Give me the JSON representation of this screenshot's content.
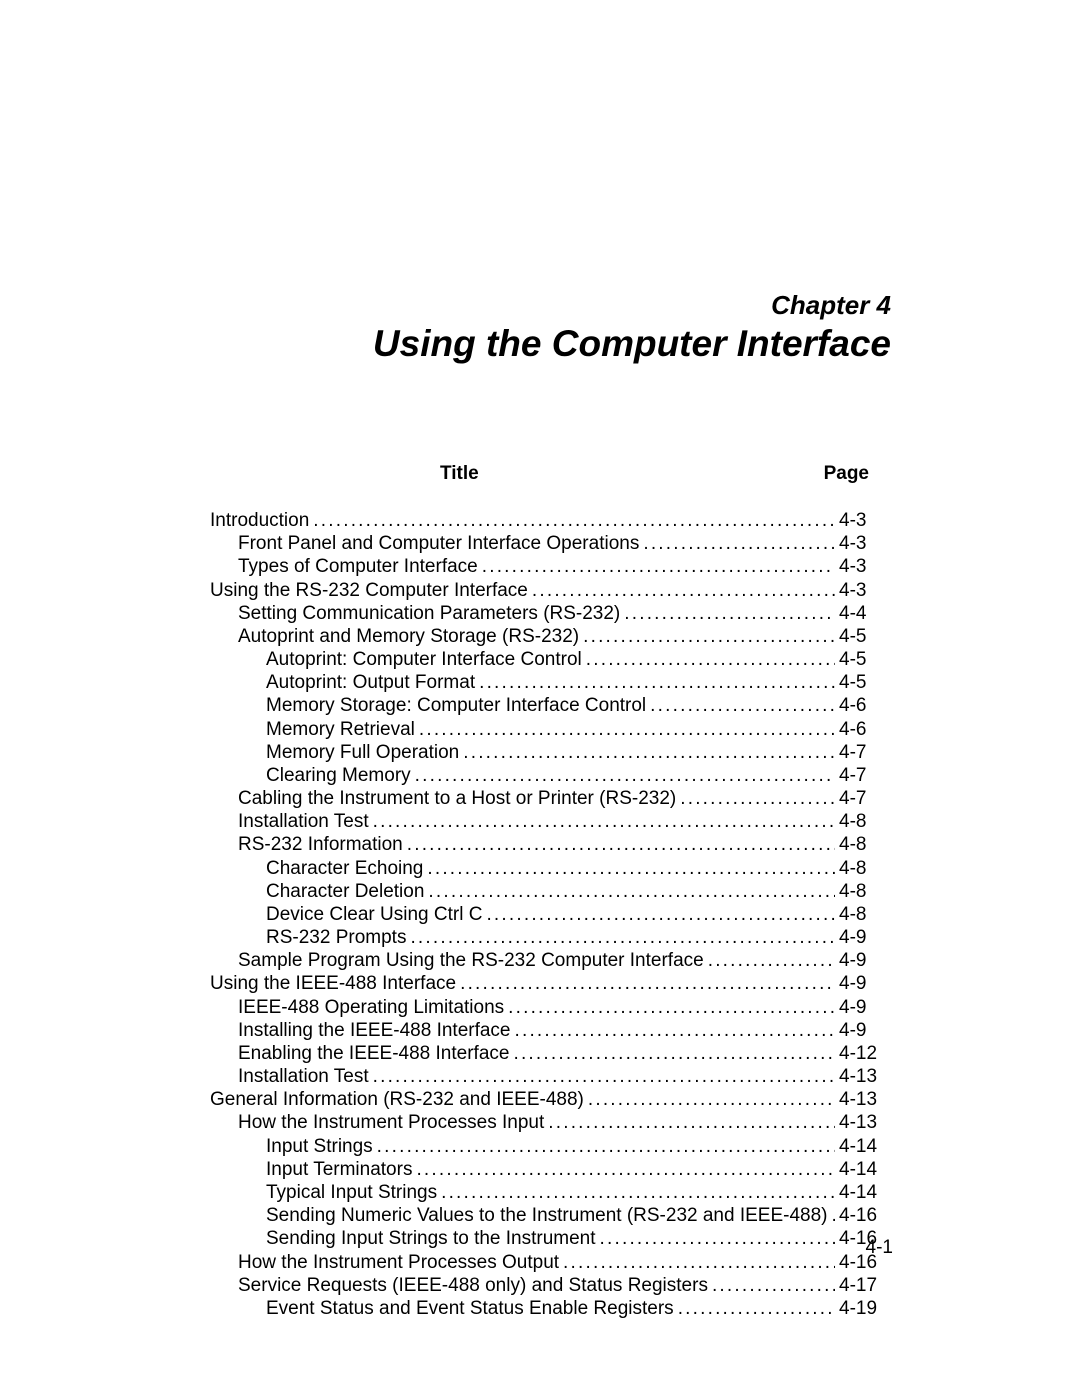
{
  "chapter_label": "Chapter 4",
  "chapter_title": "Using the Computer Interface",
  "headers": {
    "title": "Title",
    "page": "Page"
  },
  "footer_page": "4-1",
  "toc": [
    {
      "level": 0,
      "title": "Introduction",
      "page": "4-3"
    },
    {
      "level": 1,
      "title": "Front Panel and Computer Interface Operations",
      "page": "4-3"
    },
    {
      "level": 1,
      "title": "Types of Computer Interface",
      "page": "4-3"
    },
    {
      "level": 0,
      "title": "Using the RS-232 Computer Interface",
      "page": "4-3"
    },
    {
      "level": 1,
      "title": "Setting Communication Parameters (RS-232)",
      "page": "4-4"
    },
    {
      "level": 1,
      "title": "Autoprint and Memory Storage (RS-232)",
      "page": "4-5"
    },
    {
      "level": 2,
      "title": "Autoprint: Computer Interface Control",
      "page": "4-5"
    },
    {
      "level": 2,
      "title": "Autoprint: Output Format",
      "page": "4-5"
    },
    {
      "level": 2,
      "title": "Memory Storage: Computer Interface Control",
      "page": "4-6"
    },
    {
      "level": 2,
      "title": "Memory Retrieval",
      "page": "4-6"
    },
    {
      "level": 2,
      "title": "Memory Full Operation",
      "page": "4-7"
    },
    {
      "level": 2,
      "title": "Clearing Memory",
      "page": "4-7"
    },
    {
      "level": 1,
      "title": "Cabling the Instrument to a Host or Printer (RS-232)",
      "page": "4-7"
    },
    {
      "level": 1,
      "title": "Installation Test",
      "page": "4-8"
    },
    {
      "level": 1,
      "title": "RS-232 Information",
      "page": "4-8"
    },
    {
      "level": 2,
      "title": "Character Echoing",
      "page": "4-8"
    },
    {
      "level": 2,
      "title": "Character Deletion",
      "page": "4-8"
    },
    {
      "level": 2,
      "title": "Device Clear Using Ctrl C",
      "page": "4-8"
    },
    {
      "level": 2,
      "title": "RS-232 Prompts",
      "page": "4-9"
    },
    {
      "level": 1,
      "title": "Sample Program Using the RS-232 Computer Interface",
      "page": "4-9"
    },
    {
      "level": 0,
      "title": "Using the IEEE-488 Interface",
      "page": "4-9"
    },
    {
      "level": 1,
      "title": "IEEE-488 Operating Limitations",
      "page": "4-9"
    },
    {
      "level": 1,
      "title": "Installing the IEEE-488 Interface",
      "page": "4-9"
    },
    {
      "level": 1,
      "title": "Enabling the IEEE-488 Interface",
      "page": "4-12"
    },
    {
      "level": 1,
      "title": "Installation Test",
      "page": "4-13"
    },
    {
      "level": 0,
      "title": "General Information (RS-232 and IEEE-488)",
      "page": "4-13"
    },
    {
      "level": 1,
      "title": "How the Instrument Processes Input",
      "page": "4-13"
    },
    {
      "level": 2,
      "title": "Input Strings",
      "page": "4-14"
    },
    {
      "level": 2,
      "title": "Input Terminators",
      "page": "4-14"
    },
    {
      "level": 2,
      "title": "Typical Input Strings",
      "page": "4-14"
    },
    {
      "level": 2,
      "title": "Sending Numeric Values to the Instrument (RS-232 and IEEE-488)",
      "page": "4-16"
    },
    {
      "level": 2,
      "title": "Sending Input Strings to the Instrument",
      "page": "4-16"
    },
    {
      "level": 1,
      "title": "How the Instrument Processes Output",
      "page": "4-16"
    },
    {
      "level": 1,
      "title": "Service Requests (IEEE-488 only) and Status Registers",
      "page": "4-17"
    },
    {
      "level": 2,
      "title": "Event Status and Event Status Enable Registers",
      "page": "4-19"
    }
  ]
}
